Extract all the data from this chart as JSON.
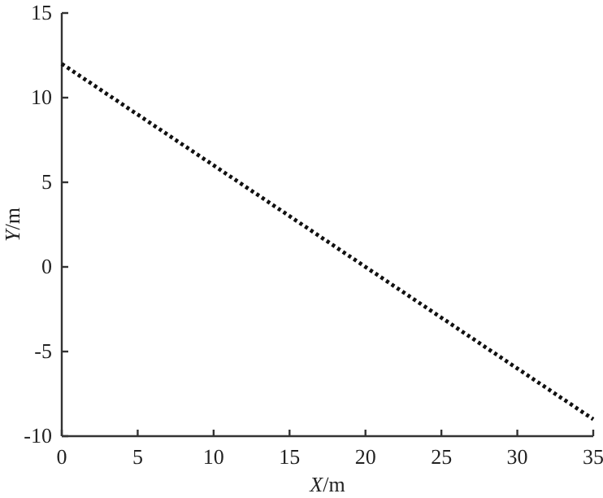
{
  "chart_data": {
    "type": "line",
    "xlabel": "X/m",
    "ylabel": "Y/m",
    "x": [
      0,
      35
    ],
    "series": [
      {
        "color": "#111111",
        "values": [
          12,
          -9
        ]
      }
    ],
    "xlim": [
      0,
      35
    ],
    "ylim": [
      -10,
      15
    ],
    "xticks": [
      0,
      5,
      10,
      15,
      20,
      25,
      30,
      35
    ],
    "yticks": [
      -10,
      -5,
      0,
      5,
      10,
      15
    ],
    "line_style": "dotted",
    "grid": false
  }
}
